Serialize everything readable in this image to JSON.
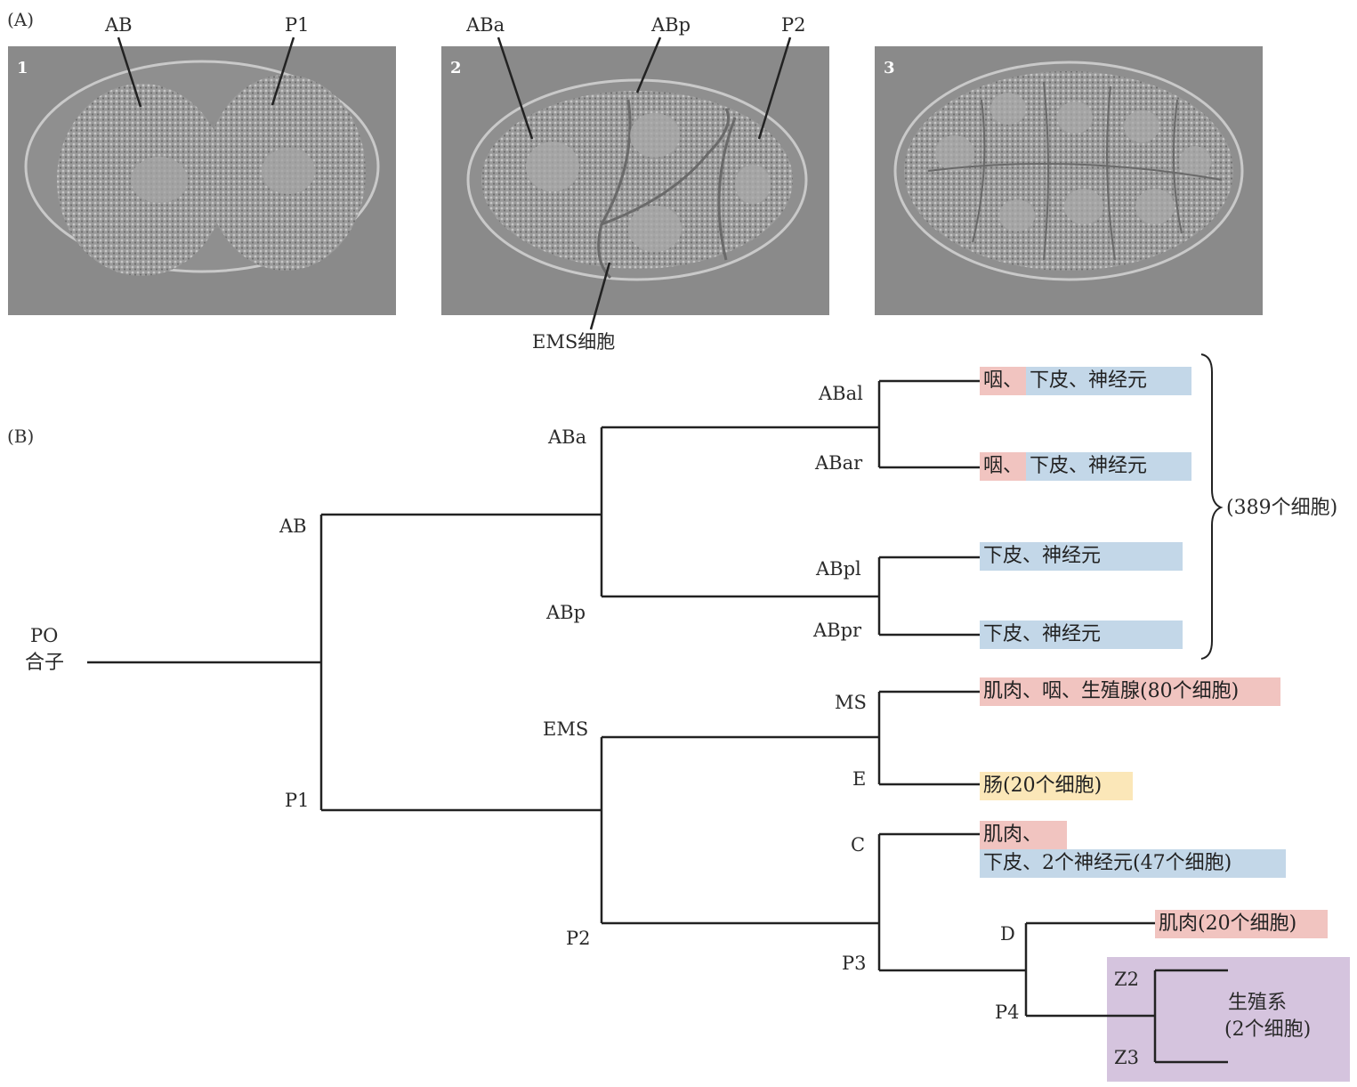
{
  "panel_a": {
    "label": "(A)",
    "photos": [
      {
        "number": "1",
        "callouts": [
          "AB",
          "P1"
        ]
      },
      {
        "number": "2",
        "callouts": [
          "ABa",
          "ABp",
          "P2"
        ],
        "bottom_callout": "EMS细胞"
      },
      {
        "number": "3",
        "callouts": []
      }
    ]
  },
  "panel_b": {
    "label": "(B)",
    "root": {
      "name": "PO",
      "sub": "合子"
    },
    "nodes": {
      "AB": "AB",
      "P1": "P1",
      "ABa": "ABa",
      "ABp": "ABp",
      "EMS": "EMS",
      "P2": "P2",
      "ABal": "ABal",
      "ABar": "ABar",
      "ABpl": "ABpl",
      "ABpr": "ABpr",
      "MS": "MS",
      "E": "E",
      "C": "C",
      "P3": "P3",
      "D": "D",
      "P4": "P4",
      "Z2": "Z2",
      "Z3": "Z3"
    },
    "fates": {
      "abal_red": "咽、",
      "abal_blue": "下皮、神经元",
      "abar_red": "咽、",
      "abar_blue": "下皮、神经元",
      "abpl_blue": "下皮、神经元",
      "abpr_blue": "下皮、神经元",
      "ms_red": "肌肉、咽、生殖腺(80个细胞)",
      "e_yellow": "肠(20个细胞)",
      "c_red": "肌肉、",
      "c_blue": "下皮、2个神经元(47个细胞)",
      "d_red": "肌肉(20个细胞)",
      "germline_line1": "生殖系",
      "germline_line2": "(2个细胞)"
    },
    "bracket_label": "(389个细胞)",
    "colors": {
      "muscle": "#f1c4c0",
      "ectoderm": "#c3d7e8",
      "intestine": "#fbe7b8",
      "germline": "#d5c4de"
    }
  }
}
